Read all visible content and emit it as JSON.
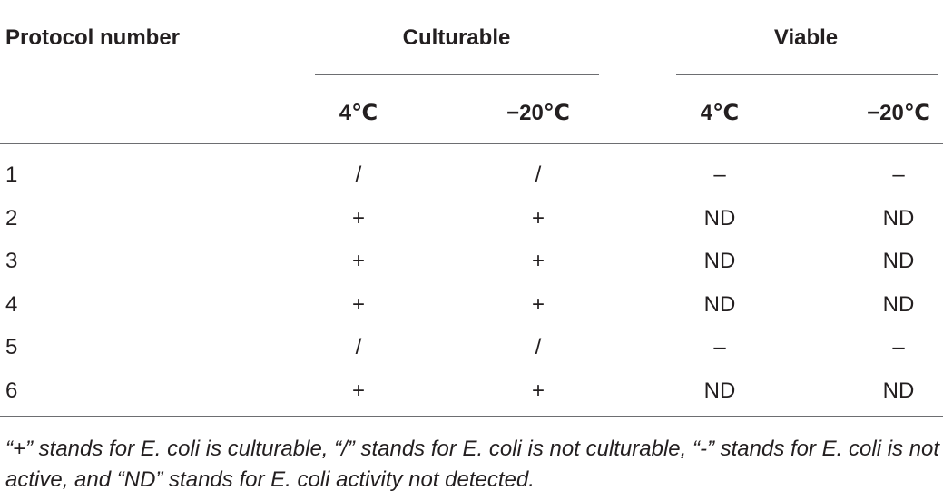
{
  "table": {
    "header": {
      "protocol": "Protocol number",
      "culturable": "Culturable",
      "viable": "Viable"
    },
    "subheader": [
      "4℃",
      "−20℃",
      "4℃",
      "−20℃"
    ],
    "rows": [
      [
        "1",
        "/",
        "/",
        "–",
        "–"
      ],
      [
        "2",
        "+",
        "+",
        "ND",
        "ND"
      ],
      [
        "3",
        "+",
        "+",
        "ND",
        "ND"
      ],
      [
        "4",
        "+",
        "+",
        "ND",
        "ND"
      ],
      [
        "5",
        "/",
        "/",
        "–",
        "–"
      ],
      [
        "6",
        "+",
        "+",
        "ND",
        "ND"
      ]
    ],
    "footnote": "“+” stands for E. coli is culturable, “/” stands for E. coli is not culturable, “-” stands for E. coli is not active, and “ND” stands for E. coli activity not detected."
  }
}
